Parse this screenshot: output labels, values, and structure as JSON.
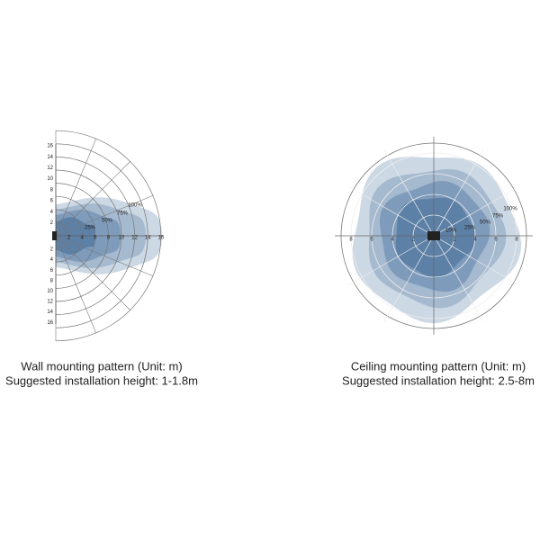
{
  "wall": {
    "y_labels_top": [
      "16",
      "14",
      "12",
      "10",
      "8",
      "6",
      "4",
      "2"
    ],
    "y_labels_bottom": [
      "2",
      "4",
      "6",
      "8",
      "10",
      "12",
      "14",
      "16"
    ],
    "x_labels": [
      "2",
      "4",
      "6",
      "8",
      "10",
      "12",
      "14",
      "16"
    ],
    "zones": [
      "100%",
      "75%",
      "50%",
      "25%"
    ],
    "caption": [
      "Wall mounting pattern (Unit: m)",
      "Suggested installation height: 1-1.8m"
    ]
  },
  "ceiling": {
    "axis_labels": [
      "8",
      "6",
      "4",
      "2",
      "2",
      "4",
      "6",
      "8"
    ],
    "zones": [
      "100%",
      "75%",
      "50%",
      "25%",
      "10%"
    ],
    "caption": [
      "Ceiling  mounting pattern (Unit: m)",
      "Suggested installation height: 2.5-8m"
    ]
  }
}
